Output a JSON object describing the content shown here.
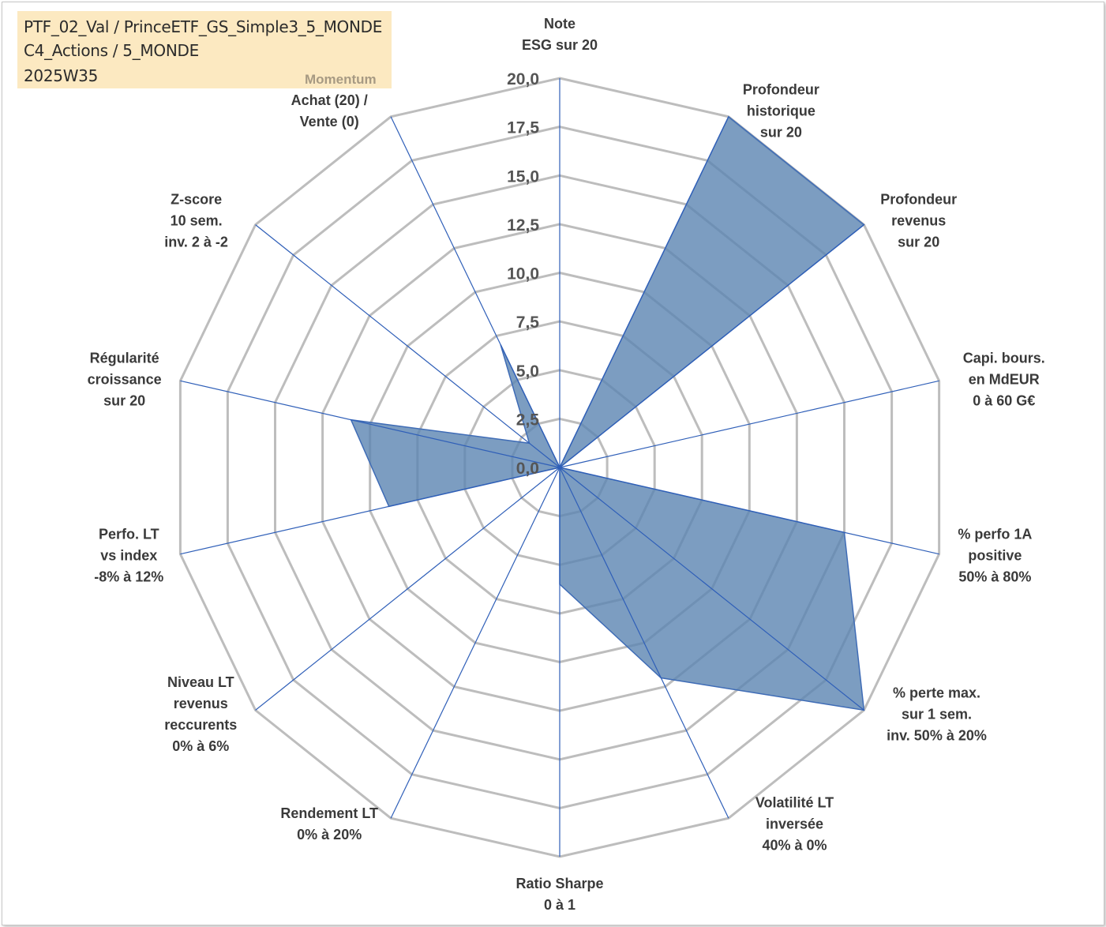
{
  "header": {
    "line1": "PTF_02_Val / PrinceETF_GS_Simple3_5_MONDE",
    "line2": "C4_Actions / 5_MONDE",
    "line3": "2025W35",
    "momentum": "Momentum"
  },
  "chart_data": {
    "type": "radar",
    "axes": [
      [
        "Note",
        "ESG sur 20"
      ],
      [
        "Profondeur",
        "historique",
        "sur 20"
      ],
      [
        "Profondeur",
        "revenus",
        "sur 20"
      ],
      [
        "Capi. bours.",
        "en MdEUR",
        "0 à 60 G€"
      ],
      [
        "% perfo 1A",
        "positive",
        "50% à 80%"
      ],
      [
        "% perte max.",
        "sur 1 sem.",
        "inv. 50% à 20%"
      ],
      [
        "Volatilité LT",
        "inversée",
        "40% à 0%"
      ],
      [
        "Ratio Sharpe",
        "0 à 1"
      ],
      [
        "Rendement LT",
        "0% à 20%"
      ],
      [
        "Niveau LT",
        "revenus",
        "reccurents",
        "0% à 6%"
      ],
      [
        "Perfo. LT",
        "vs index",
        "-8% à 12%"
      ],
      [
        "Régularité",
        "croissance",
        "sur 20"
      ],
      [
        "Z-score",
        "10 sem.",
        "inv. 2 à -2"
      ],
      [
        "Achat (20) /",
        "Vente (0)"
      ]
    ],
    "values": [
      0,
      20,
      20,
      0,
      15,
      20,
      12,
      6,
      0,
      0,
      9,
      11,
      2,
      7
    ],
    "rmin": 0,
    "rmax": 20,
    "ticks": [
      "0,0",
      "2,5",
      "5,0",
      "7,5",
      "10,0",
      "12,5",
      "15,0",
      "17,5",
      "20,0"
    ],
    "tick_values": [
      0,
      2.5,
      5,
      7.5,
      10,
      12.5,
      15,
      17.5,
      20
    ],
    "colors": {
      "fill": "#5b84b1",
      "stroke": "#3f6cb6",
      "spoke": "#2f5fb8",
      "grid": "#bdbdbd"
    }
  }
}
